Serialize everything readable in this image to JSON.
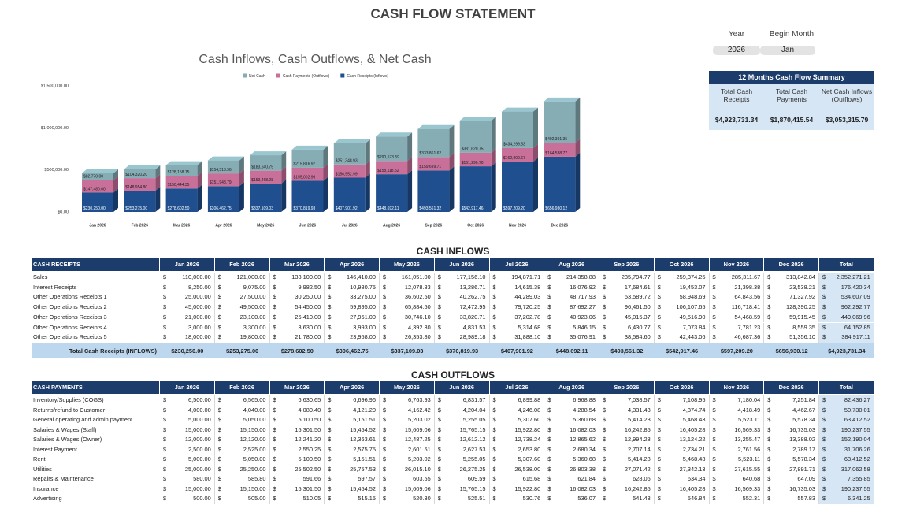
{
  "title": "CASH FLOW STATEMENT",
  "currency": "$",
  "chart_data": {
    "type": "bar",
    "stacked": true,
    "title": "Cash Inflows, Cash Outflows, & Net Cash",
    "legend": "top",
    "categories": [
      "Jan 2026",
      "Feb 2026",
      "Mar 2026",
      "Apr 2026",
      "May 2026",
      "Jun 2026",
      "Jul 2026",
      "Aug 2026",
      "Sep 2026",
      "Oct 2026",
      "Nov 2026",
      "Dec 2026"
    ],
    "series": [
      {
        "name": "Net Cash",
        "color": "#86acb4",
        "values": [
          82770,
          104320.2,
          128158.15,
          154513.96,
          183640.75,
          215816.97,
          251348.93,
          290573.59,
          333861.62,
          381620.75,
          434299.53,
          492391.35
        ],
        "value_labels": [
          "$82,770.00",
          "$104,320.20",
          "$128,158.15",
          "$154,513.96",
          "$183,640.75",
          "$215,816.97",
          "$251,348.93",
          "$290,573.59",
          "$333,861.62",
          "$381,620.75",
          "$434,299.53",
          "$492,391.35"
        ]
      },
      {
        "name": "Cash Payments (Outflows)",
        "color": "#c8709a",
        "values": [
          147480,
          148954.8,
          150444.35,
          151948.79,
          153468.28,
          155002.96,
          156552.99,
          158118.52,
          159699.71,
          161296.7,
          162909.67,
          164538.77
        ],
        "value_labels": [
          "$147,480.00",
          "$148,954.80",
          "$150,444.35",
          "$151,948.79",
          "$153,468.28",
          "$155,002.96",
          "$156,552.99",
          "$158,118.52",
          "$159,699.71",
          "$161,296.70",
          "$162,909.67",
          "$164,538.77"
        ]
      },
      {
        "name": "Cash Receipts (Inflows)",
        "color": "#1f4f8f",
        "values": [
          230250,
          253275,
          278602.5,
          306462.75,
          337109.03,
          370819.93,
          407901.92,
          448692.11,
          493561.32,
          542917.46,
          597209.2,
          656930.12
        ],
        "value_labels": [
          "$230,250.00",
          "$253,275.00",
          "$278,602.50",
          "$306,462.75",
          "$337,109.03",
          "$370,819.93",
          "$407,901.92",
          "$448,692.11",
          "$493,561.32",
          "$542,917.46",
          "$597,209.20",
          "$656,930.12"
        ]
      }
    ],
    "ylim": [
      0,
      1500000
    ],
    "yticks": [
      {
        "value": 0,
        "label": "$0.00"
      },
      {
        "value": 500000,
        "label": "$500,000.00"
      },
      {
        "value": 1000000,
        "label": "$1,000,000.00"
      },
      {
        "value": 1500000,
        "label": "$1,500,000.00"
      }
    ]
  },
  "settings": {
    "year_label": "Year",
    "year": "2026",
    "month_label": "Begin Month",
    "month": "Jan"
  },
  "summary": {
    "title": "12 Months Cash Flow Summary",
    "headers": [
      "Total Cash Receipts",
      "Total Cash Payments",
      "Net Cash Inflows (Outflows)"
    ],
    "values": [
      "$4,923,731.34",
      "$1,870,415.54",
      "$3,053,315.79"
    ]
  },
  "inflows": {
    "title": "CASH INFLOWS",
    "header": [
      "CASH RECEIPTS",
      "Jan 2026",
      "Feb 2026",
      "Mar 2026",
      "Apr 2026",
      "May 2026",
      "Jun 2026",
      "Jul 2026",
      "Aug 2026",
      "Sep 2026",
      "Oct 2026",
      "Nov 2026",
      "Dec 2026",
      "Total"
    ],
    "rows": [
      [
        "Sales",
        "110,000.00",
        "121,000.00",
        "133,100.00",
        "146,410.00",
        "161,051.00",
        "177,156.10",
        "194,871.71",
        "214,358.88",
        "235,794.77",
        "259,374.25",
        "285,311.67",
        "313,842.84",
        "2,352,271.21"
      ],
      [
        "Interest Receipts",
        "8,250.00",
        "9,075.00",
        "9,982.50",
        "10,980.75",
        "12,078.83",
        "13,286.71",
        "14,615.38",
        "16,076.92",
        "17,684.61",
        "19,453.07",
        "21,398.38",
        "23,538.21",
        "176,420.34"
      ],
      [
        "Other Operations Receipts 1",
        "25,000.00",
        "27,500.00",
        "30,250.00",
        "33,275.00",
        "36,602.50",
        "40,262.75",
        "44,289.03",
        "48,717.93",
        "53,589.72",
        "58,948.69",
        "64,843.56",
        "71,327.92",
        "534,607.09"
      ],
      [
        "Other Operations Receipts 2",
        "45,000.00",
        "49,500.00",
        "54,450.00",
        "59,895.00",
        "65,884.50",
        "72,472.95",
        "79,720.25",
        "87,692.27",
        "96,461.50",
        "106,107.65",
        "116,718.41",
        "128,390.25",
        "962,292.77"
      ],
      [
        "Other Operations Receipts 3",
        "21,000.00",
        "23,100.00",
        "25,410.00",
        "27,951.00",
        "30,746.10",
        "33,820.71",
        "37,202.78",
        "40,923.06",
        "45,015.37",
        "49,516.90",
        "54,468.59",
        "59,915.45",
        "449,069.96"
      ],
      [
        "Other Operations Receipts 4",
        "3,000.00",
        "3,300.00",
        "3,630.00",
        "3,993.00",
        "4,392.30",
        "4,831.53",
        "5,314.68",
        "5,846.15",
        "6,430.77",
        "7,073.84",
        "7,781.23",
        "8,559.35",
        "64,152.85"
      ],
      [
        "Other Operations Receipts 5",
        "18,000.00",
        "19,800.00",
        "21,780.00",
        "23,958.00",
        "26,353.80",
        "28,989.18",
        "31,888.10",
        "35,076.91",
        "38,584.60",
        "42,443.06",
        "46,687.36",
        "51,356.10",
        "384,917.11"
      ]
    ],
    "total": [
      "Total Cash Receipts (INFLOWS)",
      "$230,250.00",
      "$253,275.00",
      "$278,602.50",
      "$306,462.75",
      "$337,109.03",
      "$370,819.93",
      "$407,901.92",
      "$448,692.11",
      "$493,561.32",
      "$542,917.46",
      "$597,209.20",
      "$656,930.12",
      "$4,923,731.34"
    ]
  },
  "outflows": {
    "title": "CASH OUTFLOWS",
    "header": [
      "CASH PAYMENTS",
      "Jan 2026",
      "Feb 2026",
      "Mar 2026",
      "Apr 2026",
      "May 2026",
      "Jun 2026",
      "Jul 2026",
      "Aug 2026",
      "Sep 2026",
      "Oct 2026",
      "Nov 2026",
      "Dec 2026",
      "Total"
    ],
    "rows": [
      [
        "Inventory/Supplies (COGS)",
        "6,500.00",
        "6,565.00",
        "6,630.65",
        "6,696.96",
        "6,763.93",
        "6,831.57",
        "6,899.88",
        "6,968.88",
        "7,038.57",
        "7,108.95",
        "7,180.04",
        "7,251.84",
        "82,436.27"
      ],
      [
        "Returns/refund to Customer",
        "4,000.00",
        "4,040.00",
        "4,080.40",
        "4,121.20",
        "4,162.42",
        "4,204.04",
        "4,246.08",
        "4,288.54",
        "4,331.43",
        "4,374.74",
        "4,418.49",
        "4,462.67",
        "50,730.01"
      ],
      [
        "General operating and admin payment",
        "5,000.00",
        "5,050.00",
        "5,100.50",
        "5,151.51",
        "5,203.02",
        "5,255.05",
        "5,307.60",
        "5,360.68",
        "5,414.28",
        "5,468.43",
        "5,523.11",
        "5,578.34",
        "63,412.52"
      ],
      [
        "Salaries & Wages (Staff)",
        "15,000.00",
        "15,150.00",
        "15,301.50",
        "15,454.52",
        "15,609.06",
        "15,765.15",
        "15,922.80",
        "16,082.03",
        "16,242.85",
        "16,405.28",
        "16,569.33",
        "16,735.03",
        "190,237.55"
      ],
      [
        "Salaries & Wages (Owner)",
        "12,000.00",
        "12,120.00",
        "12,241.20",
        "12,363.61",
        "12,487.25",
        "12,612.12",
        "12,738.24",
        "12,865.62",
        "12,994.28",
        "13,124.22",
        "13,255.47",
        "13,388.02",
        "152,190.04"
      ],
      [
        "Interest Payment",
        "2,500.00",
        "2,525.00",
        "2,550.25",
        "2,575.75",
        "2,601.51",
        "2,627.53",
        "2,653.80",
        "2,680.34",
        "2,707.14",
        "2,734.21",
        "2,761.56",
        "2,789.17",
        "31,706.26"
      ],
      [
        "Rent",
        "5,000.00",
        "5,050.00",
        "5,100.50",
        "5,151.51",
        "5,203.02",
        "5,255.05",
        "5,307.60",
        "5,360.68",
        "5,414.28",
        "5,468.43",
        "5,523.11",
        "5,578.34",
        "63,412.52"
      ],
      [
        "Utilities",
        "25,000.00",
        "25,250.00",
        "25,502.50",
        "25,757.53",
        "26,015.10",
        "26,275.25",
        "26,538.00",
        "26,803.38",
        "27,071.42",
        "27,342.13",
        "27,615.55",
        "27,891.71",
        "317,062.58"
      ],
      [
        "Repairs & Maintenance",
        "580.00",
        "585.80",
        "591.66",
        "597.57",
        "603.55",
        "609.59",
        "615.68",
        "621.84",
        "628.06",
        "634.34",
        "640.68",
        "647.09",
        "7,355.85"
      ],
      [
        "Insurance",
        "15,000.00",
        "15,150.00",
        "15,301.50",
        "15,454.52",
        "15,609.06",
        "15,765.15",
        "15,922.80",
        "16,082.03",
        "16,242.85",
        "16,405.28",
        "16,569.33",
        "16,735.03",
        "190,237.55"
      ],
      [
        "Advertising",
        "500.00",
        "505.00",
        "510.05",
        "515.15",
        "520.30",
        "525.51",
        "530.76",
        "536.07",
        "541.43",
        "546.84",
        "552.31",
        "557.83",
        "6,341.25"
      ]
    ]
  }
}
